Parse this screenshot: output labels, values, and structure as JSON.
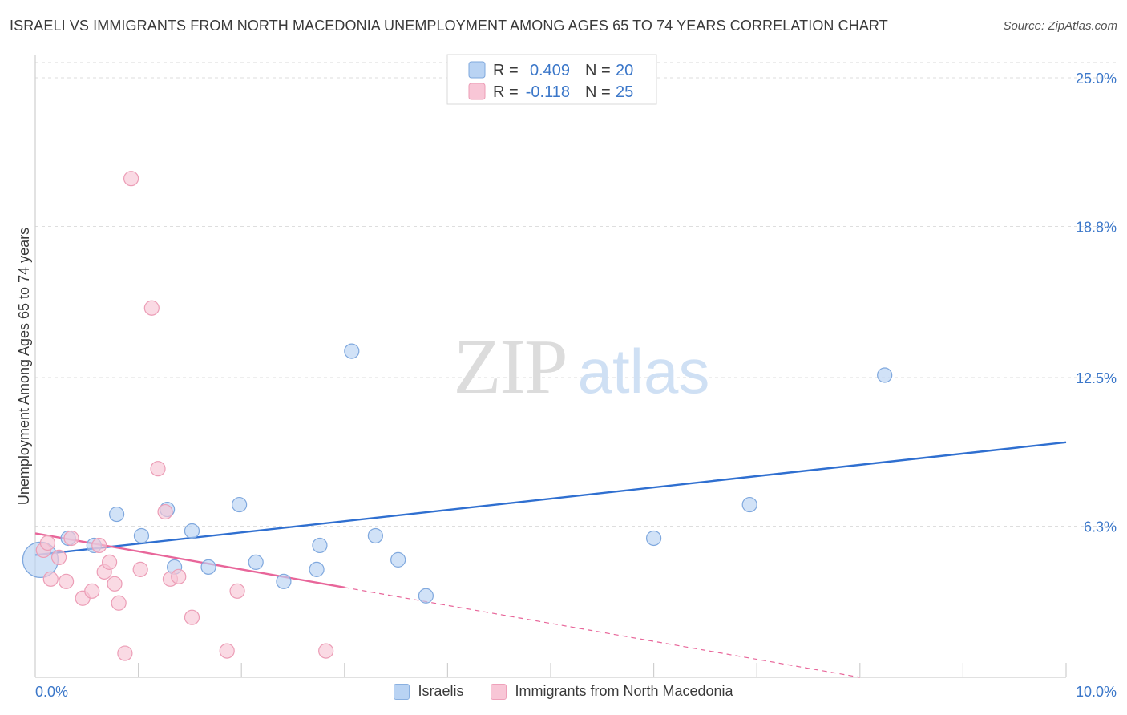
{
  "page": {
    "title": "ISRAELI VS IMMIGRANTS FROM NORTH MACEDONIA UNEMPLOYMENT AMONG AGES 65 TO 74 YEARS CORRELATION CHART",
    "source": "Source: ZipAtlas.com"
  },
  "colors": {
    "blue_fill": "#b9d3f3",
    "blue_stroke": "#7fa8de",
    "blue_line": "#2f6fd0",
    "pink_fill": "#f8c6d6",
    "pink_stroke": "#ec9db6",
    "pink_line": "#e8669a",
    "value_text": "#3b77c9"
  },
  "chart_data": {
    "type": "scatter",
    "title": "ISRAELI VS IMMIGRANTS FROM NORTH MACEDONIA UNEMPLOYMENT AMONG AGES 65 TO 74 YEARS CORRELATION CHART",
    "xlabel": "",
    "ylabel": "Unemployment Among Ages 65 to 74 years",
    "xlim": [
      0,
      10
    ],
    "ylim": [
      0,
      25
    ],
    "x_ticks": [
      "0.0%",
      "10.0%"
    ],
    "y_ticks": [
      {
        "value": 6.3,
        "label": "6.3%"
      },
      {
        "value": 12.5,
        "label": "12.5%"
      },
      {
        "value": 18.8,
        "label": "18.8%"
      },
      {
        "value": 25.0,
        "label": "25.0%"
      }
    ],
    "watermark": {
      "zip": "ZIP",
      "atlas": "atlas"
    },
    "legend_top": [
      {
        "r_label": "R =",
        "r_value": "0.409",
        "n_label": "N =",
        "n_value": "20"
      },
      {
        "r_label": "R =",
        "r_value": "-0.118",
        "n_label": "N =",
        "n_value": "25"
      }
    ],
    "series": [
      {
        "name": "Israelis",
        "color": "#b9d3f3",
        "points": [
          [
            0.05,
            4.9,
            22
          ],
          [
            0.32,
            5.8,
            9
          ],
          [
            0.57,
            5.5,
            9
          ],
          [
            0.79,
            6.8,
            9
          ],
          [
            1.03,
            5.9,
            9
          ],
          [
            1.28,
            7.0,
            9
          ],
          [
            1.35,
            4.6,
            9
          ],
          [
            1.52,
            6.1,
            9
          ],
          [
            1.68,
            4.6,
            9
          ],
          [
            1.98,
            7.2,
            9
          ],
          [
            2.14,
            4.8,
            9
          ],
          [
            2.41,
            4.0,
            9
          ],
          [
            2.73,
            4.5,
            9
          ],
          [
            2.76,
            5.5,
            9
          ],
          [
            3.07,
            13.6,
            9
          ],
          [
            3.3,
            5.9,
            9
          ],
          [
            3.52,
            4.9,
            9
          ],
          [
            3.79,
            3.4,
            9
          ],
          [
            6.0,
            5.8,
            9
          ],
          [
            6.93,
            7.2,
            9
          ],
          [
            8.24,
            12.6,
            9
          ]
        ],
        "trend": {
          "x0": 0.0,
          "y0": 5.1,
          "x1": 10.0,
          "y1": 9.8,
          "x_solid_end": 10.0
        }
      },
      {
        "name": "Immigrants from North Macedonia",
        "color": "#f8c6d6",
        "points": [
          [
            0.08,
            5.3,
            9
          ],
          [
            0.12,
            5.6,
            9
          ],
          [
            0.15,
            4.1,
            9
          ],
          [
            0.23,
            5.0,
            9
          ],
          [
            0.3,
            4.0,
            9
          ],
          [
            0.35,
            5.8,
            9
          ],
          [
            0.46,
            3.3,
            9
          ],
          [
            0.55,
            3.6,
            9
          ],
          [
            0.62,
            5.5,
            9
          ],
          [
            0.67,
            4.4,
            9
          ],
          [
            0.72,
            4.8,
            9
          ],
          [
            0.77,
            3.9,
            9
          ],
          [
            0.81,
            3.1,
            9
          ],
          [
            0.87,
            1.0,
            9
          ],
          [
            0.93,
            20.8,
            9
          ],
          [
            1.02,
            4.5,
            9
          ],
          [
            1.13,
            15.4,
            9
          ],
          [
            1.19,
            8.7,
            9
          ],
          [
            1.26,
            6.9,
            9
          ],
          [
            1.31,
            4.1,
            9
          ],
          [
            1.39,
            4.2,
            9
          ],
          [
            1.52,
            2.5,
            9
          ],
          [
            1.86,
            1.1,
            9
          ],
          [
            1.96,
            3.6,
            9
          ],
          [
            2.82,
            1.1,
            9
          ]
        ],
        "trend": {
          "x0": 0.0,
          "y0": 6.0,
          "x1": 8.0,
          "y1": 0.0,
          "x_solid_end": 3.0
        }
      }
    ]
  }
}
